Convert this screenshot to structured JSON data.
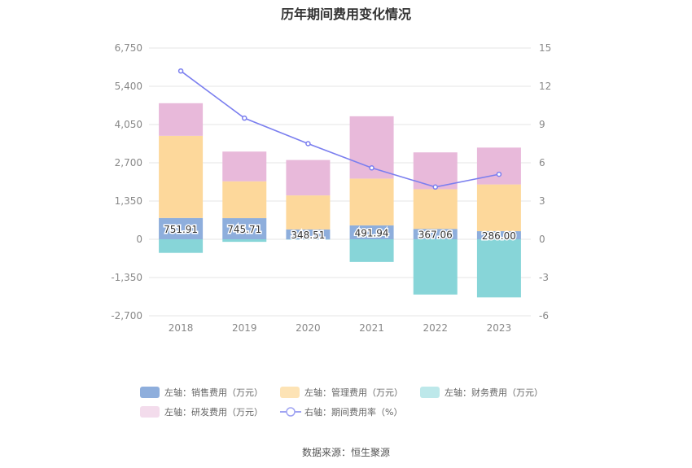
{
  "title": "历年期间费用变化情况",
  "source": "数据来源：恒生聚源",
  "colors": {
    "sales": "#8eaedc",
    "mgmt": "#fdd89b",
    "finance": "#87d5d8",
    "rd": "#e8b9da",
    "rate": "#7b7fef"
  },
  "legend": [
    {
      "key": "sales",
      "label": "左轴：销售费用（万元）"
    },
    {
      "key": "mgmt",
      "label": "左轴：管理费用（万元）"
    },
    {
      "key": "finance",
      "label": "左轴：财务费用（万元）"
    },
    {
      "key": "rd",
      "label": "左轴：研发费用（万元）"
    },
    {
      "key": "rate",
      "label": "右轴：期间费用率（%）"
    }
  ],
  "chart_data": {
    "type": "bar",
    "stacked": true,
    "categories": [
      "2018",
      "2019",
      "2020",
      "2021",
      "2022",
      "2023"
    ],
    "left_axis": {
      "ticks": [
        "-2,700",
        "-1,350",
        "0",
        "1,350",
        "2,700",
        "4,050",
        "5,400",
        "6,750"
      ],
      "ylim": [
        -2700,
        6750
      ]
    },
    "right_axis": {
      "ticks": [
        "-6",
        "-3",
        "0",
        "3",
        "6",
        "9",
        "12",
        "15"
      ],
      "ylim": [
        -6,
        15
      ]
    },
    "series": [
      {
        "key": "sales",
        "name": "左轴：销售费用（万元）",
        "axis": "left",
        "values": [
          751.91,
          745.71,
          348.51,
          491.94,
          367.06,
          286.0
        ],
        "labels": [
          "751.91",
          "745.71",
          "348.51",
          "491.94",
          "367.06",
          "286.00"
        ]
      },
      {
        "key": "mgmt",
        "name": "左轴：管理费用（万元）",
        "axis": "left",
        "values": [
          2900,
          1300,
          1200,
          1650,
          1400,
          1650
        ]
      },
      {
        "key": "finance",
        "name": "左轴：财务费用（万元）",
        "axis": "left",
        "values": [
          -480,
          -90,
          -10,
          -800,
          -1950,
          -2050
        ]
      },
      {
        "key": "rd",
        "name": "左轴：研发费用（万元）",
        "axis": "left",
        "values": [
          1150,
          1050,
          1250,
          2200,
          1300,
          1300
        ]
      },
      {
        "key": "rate",
        "name": "右轴：期间费用率（%）",
        "axis": "right",
        "type": "line",
        "values": [
          13.2,
          9.5,
          7.5,
          5.6,
          4.1,
          5.1
        ]
      }
    ],
    "grid": true
  }
}
